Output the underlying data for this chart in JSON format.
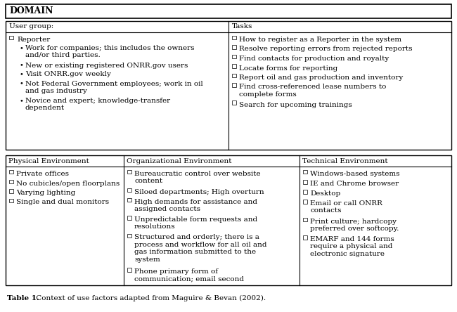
{
  "title": "DOMAIN",
  "caption_bold": "Table 1.",
  "caption_rest": " Context of use factors adapted from Maguire & Bevan (2002).",
  "background_color": "#ffffff",
  "font_size": 7.5,
  "top_left_content": [
    {
      "type": "checkbox",
      "text": "Reporter",
      "indent": 0
    },
    {
      "type": "bullet",
      "text": "Work for companies; this includes the owners\nand/or third parties.",
      "indent": 1
    },
    {
      "type": "bullet",
      "text": "New or existing registered ONRR.gov users",
      "indent": 1
    },
    {
      "type": "bullet",
      "text": "Visit ONRR.gov weekly",
      "indent": 1
    },
    {
      "type": "bullet",
      "text": "Not Federal Government employees; work in oil\nand gas industry",
      "indent": 1
    },
    {
      "type": "bullet",
      "text": "Novice and expert; knowledge-transfer\ndependent",
      "indent": 1
    }
  ],
  "top_right_content": [
    "How to register as a Reporter in the system",
    "Resolve reporting errors from rejected reports",
    "Find contacts for production and royalty",
    "Locate forms for reporting",
    "Report oil and gas production and inventory",
    "Find cross-referenced lease numbers to\ncomplete forms",
    "Search for upcoming trainings"
  ],
  "bottom_headers": [
    "Physical Environment",
    "Organizational Environment",
    "Technical Environment"
  ],
  "physical_content": [
    "Private offices",
    "No cubicles/open floorplans",
    "Varying lighting",
    "Single and dual monitors"
  ],
  "organizational_content": [
    "Bureaucratic control over website\ncontent",
    "Siloed departments; High overturn",
    "High demands for assistance and\nassigned contacts",
    "Unpredictable form requests and\nresolutions",
    "Structured and orderly; there is a\nprocess and workflow for all oil and\ngas information submitted to the\nsystem",
    "Phone primary form of\ncommunication; email second"
  ],
  "technical_content": [
    "Windows-based systems",
    "IE and Chrome browser",
    "Desktop",
    "Email or call ONRR\ncontacts",
    "Print culture; hardcopy\npreferred over softcopy.",
    "EMARF and 144 forms\nrequire a physical and\nelectronic signature"
  ]
}
